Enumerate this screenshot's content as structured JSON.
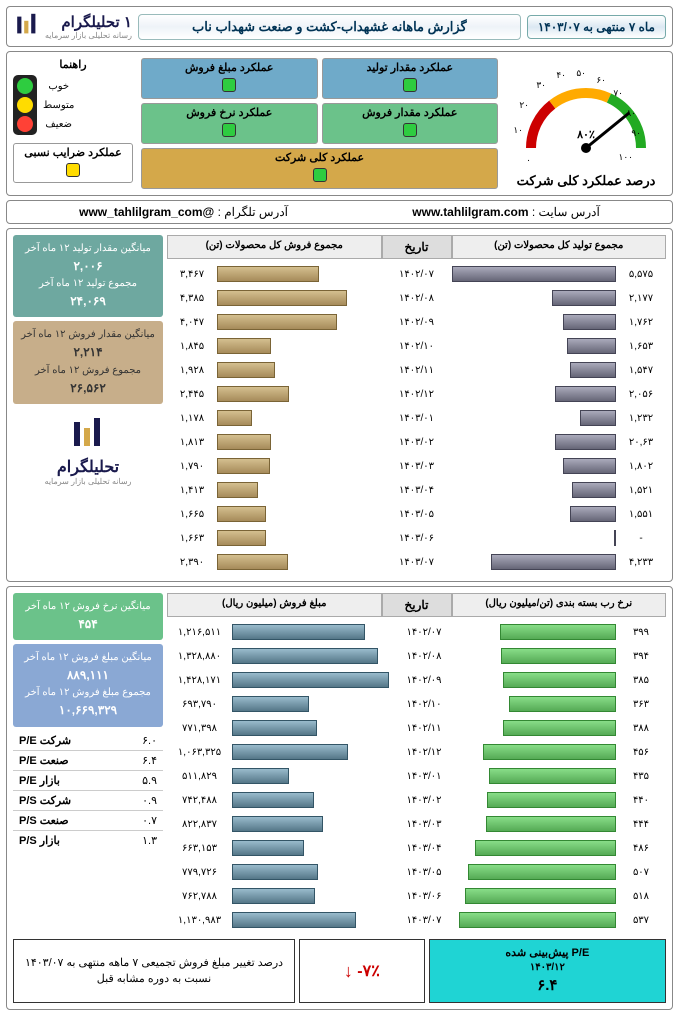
{
  "header": {
    "brand_main": "تحلیلگرام",
    "brand_sub": "رسانه تحلیلی بازار سرمایه",
    "brand_num": "۱",
    "title": "گزارش ماهانه غشهداب-کشت و صنعت شهداب ناب",
    "date": "ماه ۷ منتهی به ۱۴۰۳/۰۷"
  },
  "guide": {
    "title": "راهنما",
    "good": "خوب",
    "mid": "متوسط",
    "weak": "ضعیف",
    "rel_ratio_label": "عملکرد ضرایب نسبی"
  },
  "perf": {
    "prod_qty": "عملکرد مقدار تولید",
    "sale_amt": "عملکرد مبلغ فروش",
    "sale_qty": "عملکرد مقدار فروش",
    "sale_rate": "عملکرد نرخ فروش",
    "overall": "عملکرد کلی شرکت"
  },
  "gauge": {
    "label": "درصد عملکرد کلی شرکت",
    "pct": "۸۰٪"
  },
  "links": {
    "telegram_label": "آدرس تلگرام :",
    "telegram": "@www_tahlilgram_com",
    "site_label": "آدرس سایت :",
    "site": "www.tahlilgram.com"
  },
  "table1": {
    "col_right": "مجموع فروش کل محصولات (تن)",
    "col_date": "تاریخ",
    "col_left": "مجموع تولید کل محصولات (تن)",
    "side": {
      "a_lbl": "میانگین مقدار تولید ۱۲ ماه آخر",
      "a_val": "۲,۰۰۶",
      "b_lbl": "مجموع تولید ۱۲ ماه آخر",
      "b_val": "۲۴,۰۶۹",
      "c_lbl": "میانگین مقدار فروش ۱۲ ماه آخر",
      "c_val": "۲,۲۱۴",
      "d_lbl": "مجموع فروش ۱۲ ماه آخر",
      "d_val": "۲۶,۵۶۲"
    },
    "rows": [
      {
        "sale": "۳,۴۶۷",
        "sale_w": 62,
        "date": "۱۴۰۲/۰۷",
        "prod": "۵,۵۷۵",
        "prod_w": 100
      },
      {
        "sale": "۴,۳۸۵",
        "sale_w": 79,
        "date": "۱۴۰۲/۰۸",
        "prod": "۲,۱۷۷",
        "prod_w": 39
      },
      {
        "sale": "۴,۰۴۷",
        "sale_w": 73,
        "date": "۱۴۰۲/۰۹",
        "prod": "۱,۷۶۲",
        "prod_w": 32
      },
      {
        "sale": "۱,۸۴۵",
        "sale_w": 33,
        "date": "۱۴۰۲/۱۰",
        "prod": "۱,۶۵۳",
        "prod_w": 30
      },
      {
        "sale": "۱,۹۲۸",
        "sale_w": 35,
        "date": "۱۴۰۲/۱۱",
        "prod": "۱,۵۴۷",
        "prod_w": 28
      },
      {
        "sale": "۲,۴۴۵",
        "sale_w": 44,
        "date": "۱۴۰۲/۱۲",
        "prod": "۲,۰۵۶",
        "prod_w": 37
      },
      {
        "sale": "۱,۱۷۸",
        "sale_w": 21,
        "date": "۱۴۰۳/۰۱",
        "prod": "۱,۲۳۲",
        "prod_w": 22
      },
      {
        "sale": "۱,۸۱۳",
        "sale_w": 33,
        "date": "۱۴۰۳/۰۲",
        "prod": "۲۰,۶۳",
        "prod_w": 37
      },
      {
        "sale": "۱,۷۹۰",
        "sale_w": 32,
        "date": "۱۴۰۳/۰۳",
        "prod": "۱,۸۰۲",
        "prod_w": 32
      },
      {
        "sale": "۱,۴۱۳",
        "sale_w": 25,
        "date": "۱۴۰۳/۰۴",
        "prod": "۱,۵۲۱",
        "prod_w": 27
      },
      {
        "sale": "۱,۶۶۵",
        "sale_w": 30,
        "date": "۱۴۰۳/۰۵",
        "prod": "۱,۵۵۱",
        "prod_w": 28
      },
      {
        "sale": "۱,۶۶۳",
        "sale_w": 30,
        "date": "۱۴۰۳/۰۶",
        "prod": "-",
        "prod_w": 0
      },
      {
        "sale": "۲,۳۹۰",
        "sale_w": 43,
        "date": "۱۴۰۳/۰۷",
        "prod": "۴,۲۳۳",
        "prod_w": 76
      }
    ]
  },
  "table2": {
    "col_right": "مبلغ فروش (میلیون ریال)",
    "col_date": "تاریخ",
    "col_left": "نرخ رب بسته بندی (تن/میلیون ریال)",
    "side": {
      "a_lbl": "میانگین نرخ فروش ۱۲ ماه آخر",
      "a_val": "۴۵۴",
      "b_lbl": "میانگین مبلغ فروش ۱۲ ماه آخر",
      "b_val": "۸۸۹,۱۱۱",
      "c_lbl": "مجموع مبلغ فروش ۱۲ ماه آخر",
      "c_val": "۱۰,۶۶۹,۳۲۹"
    },
    "ratios": [
      {
        "lbl": "P/E شرکت",
        "val": "۶.۰"
      },
      {
        "lbl": "P/E صنعت",
        "val": "۶.۴"
      },
      {
        "lbl": "P/E بازار",
        "val": "۵.۹"
      },
      {
        "lbl": "P/S شرکت",
        "val": "۰.۹"
      },
      {
        "lbl": "P/S صنعت",
        "val": "۰.۷"
      },
      {
        "lbl": "P/S بازار",
        "val": "۱.۳"
      }
    ],
    "rows": [
      {
        "amt": "۱,۲۱۶,۵۱۱",
        "amt_w": 85,
        "date": "۱۴۰۲/۰۷",
        "rate": "۳۹۹",
        "rate_w": 74
      },
      {
        "amt": "۱,۳۲۸,۸۸۰",
        "amt_w": 93,
        "date": "۱۴۰۲/۰۸",
        "rate": "۳۹۴",
        "rate_w": 73
      },
      {
        "amt": "۱,۴۲۸,۱۷۱",
        "amt_w": 100,
        "date": "۱۴۰۲/۰۹",
        "rate": "۳۸۵",
        "rate_w": 72
      },
      {
        "amt": "۶۹۳,۷۹۰",
        "amt_w": 49,
        "date": "۱۴۰۲/۱۰",
        "rate": "۳۶۳",
        "rate_w": 68
      },
      {
        "amt": "۷۷۱,۳۹۸",
        "amt_w": 54,
        "date": "۱۴۰۲/۱۱",
        "rate": "۳۸۸",
        "rate_w": 72
      },
      {
        "amt": "۱,۰۶۳,۳۲۵",
        "amt_w": 74,
        "date": "۱۴۰۲/۱۲",
        "rate": "۴۵۶",
        "rate_w": 85
      },
      {
        "amt": "۵۱۱,۸۲۹",
        "amt_w": 36,
        "date": "۱۴۰۳/۰۱",
        "rate": "۴۳۵",
        "rate_w": 81
      },
      {
        "amt": "۷۴۲,۴۸۸",
        "amt_w": 52,
        "date": "۱۴۰۳/۰۲",
        "rate": "۴۴۰",
        "rate_w": 82
      },
      {
        "amt": "۸۲۲,۸۳۷",
        "amt_w": 58,
        "date": "۱۴۰۳/۰۳",
        "rate": "۴۴۴",
        "rate_w": 83
      },
      {
        "amt": "۶۶۳,۱۵۳",
        "amt_w": 46,
        "date": "۱۴۰۳/۰۴",
        "rate": "۴۸۶",
        "rate_w": 90
      },
      {
        "amt": "۷۷۹,۷۲۶",
        "amt_w": 55,
        "date": "۱۴۰۳/۰۵",
        "rate": "۵۰۷",
        "rate_w": 94
      },
      {
        "amt": "۷۶۲,۷۸۸",
        "amt_w": 53,
        "date": "۱۴۰۳/۰۶",
        "rate": "۵۱۸",
        "rate_w": 96
      },
      {
        "amt": "۱,۱۳۰,۹۸۳",
        "amt_w": 79,
        "date": "۱۴۰۳/۰۷",
        "rate": "۵۳۷",
        "rate_w": 100
      }
    ]
  },
  "footer": {
    "txt": "درصد تغییر مبلغ فروش تجمیعی ۷ ماهه منتهی به ۱۴۰۳/۰۷ نسبت به دوره مشابه قبل",
    "pct": "-۷٪",
    "pe_lbl": "P/E پیش‌بینی شده",
    "pe_date": "۱۴۰۳/۱۲",
    "pe_val": "۶.۴"
  }
}
